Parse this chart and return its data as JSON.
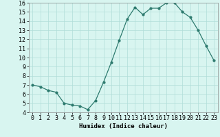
{
  "x": [
    0,
    1,
    2,
    3,
    4,
    5,
    6,
    7,
    8,
    9,
    10,
    11,
    12,
    13,
    14,
    15,
    16,
    17,
    18,
    19,
    20,
    21,
    22,
    23
  ],
  "y": [
    7.0,
    6.8,
    6.4,
    6.2,
    5.0,
    4.8,
    4.7,
    4.3,
    5.3,
    7.3,
    9.5,
    11.9,
    14.2,
    15.5,
    14.7,
    15.4,
    15.4,
    16.0,
    16.0,
    15.0,
    14.4,
    13.0,
    11.3,
    9.7
  ],
  "line_color": "#2d7a6e",
  "marker": "o",
  "marker_size": 2.0,
  "line_width": 0.9,
  "bg_color": "#d8f5f0",
  "grid_color": "#b0ddd8",
  "xlabel": "Humidex (Indice chaleur)",
  "ylabel": "",
  "xlim": [
    -0.5,
    23.5
  ],
  "ylim": [
    4,
    16
  ],
  "yticks": [
    4,
    5,
    6,
    7,
    8,
    9,
    10,
    11,
    12,
    13,
    14,
    15,
    16
  ],
  "xtick_labels": [
    "0",
    "1",
    "2",
    "3",
    "4",
    "5",
    "6",
    "7",
    "8",
    "9",
    "10",
    "11",
    "12",
    "13",
    "14",
    "15",
    "16",
    "17",
    "18",
    "19",
    "20",
    "21",
    "22",
    "23"
  ],
  "xlabel_fontsize": 6.5,
  "tick_fontsize": 6.0
}
